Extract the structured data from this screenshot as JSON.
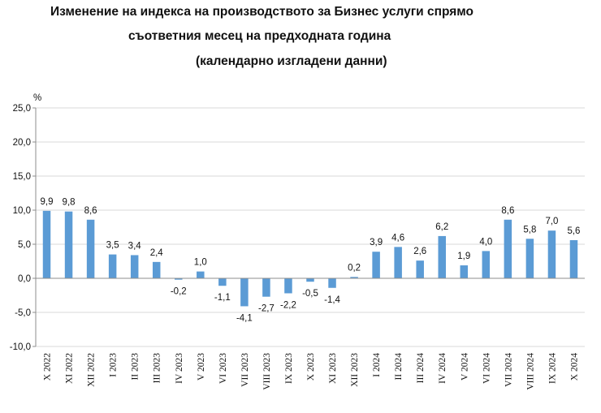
{
  "chart_data": {
    "type": "bar",
    "title": [
      "Изменение на индекса на производството за Бизнес услуги спрямо",
      "съответния месец на предходната година",
      "(календарно изгладени данни)"
    ],
    "ylabel": "%",
    "xlabel": "",
    "ylim": [
      -10,
      25
    ],
    "yticks": [
      "25,0",
      "20,0",
      "15,0",
      "10,0",
      "5,0",
      "0,0",
      "-5,0",
      "-10,0"
    ],
    "grid": true,
    "bar_color": "#5b9bd5",
    "categories": [
      "X 2022",
      "XI 2022",
      "XII 2022",
      "I 2023",
      "II 2023",
      "III 2023",
      "IV 2023",
      "V 2023",
      "VI 2023",
      "VII 2023",
      "VIII 2023",
      "IX 2023",
      "X 2023",
      "XI 2023",
      "XII 2023",
      "I 2024",
      "II 2024",
      "III 2024",
      "IV 2024",
      "V 2024",
      "VI 2024",
      "VII 2024",
      "VIII 2024",
      "IX 2024",
      "X 2024"
    ],
    "values": [
      9.9,
      9.8,
      8.6,
      3.5,
      3.4,
      2.4,
      -0.2,
      1.0,
      -1.1,
      -4.1,
      -2.7,
      -2.2,
      -0.5,
      -1.4,
      0.2,
      3.9,
      4.6,
      2.6,
      6.2,
      1.9,
      4.0,
      8.6,
      5.8,
      7.0,
      5.6
    ],
    "value_labels": [
      "9,9",
      "9,8",
      "8,6",
      "3,5",
      "3,4",
      "2,4",
      "-0,2",
      "1,0",
      "-1,1",
      "-4,1",
      "-2,7",
      "-2,2",
      "-0,5",
      "-1,4",
      "0,2",
      "3,9",
      "4,6",
      "2,6",
      "6,2",
      "1,9",
      "4,0",
      "8,6",
      "5,8",
      "7,0",
      "5,6"
    ]
  }
}
